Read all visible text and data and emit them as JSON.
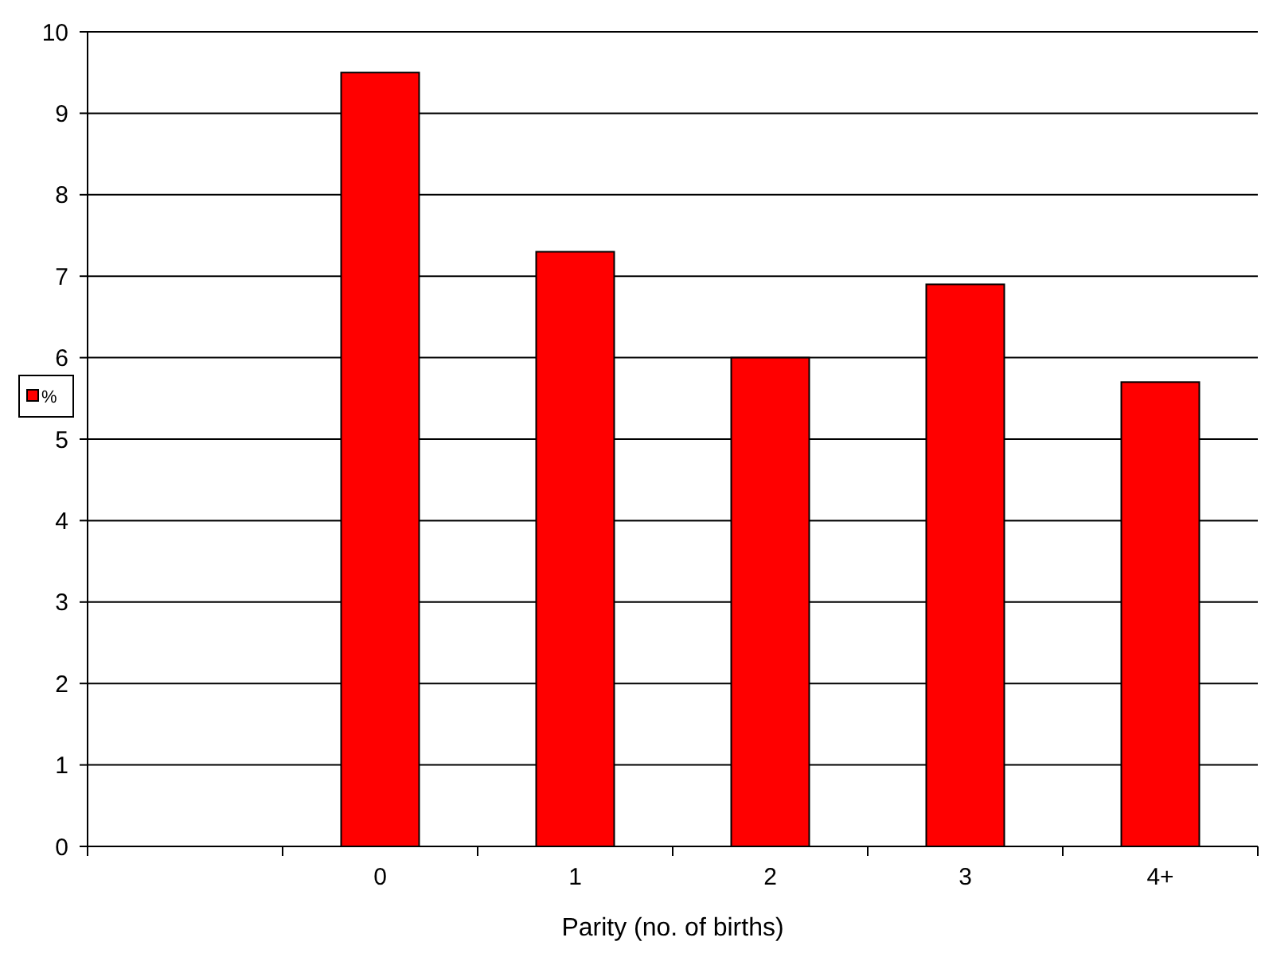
{
  "chart_data": {
    "type": "bar",
    "xlabel": "Parity (no. of births)",
    "categories": [
      null,
      "0",
      "1",
      "2",
      "3",
      "4+"
    ],
    "series": [
      {
        "name": "%",
        "color": "#ff0000",
        "values": [
          null,
          9.5,
          7.3,
          6.0,
          6.9,
          5.7
        ]
      }
    ],
    "ylim": [
      0,
      10
    ],
    "yticks": [
      0,
      1,
      2,
      3,
      4,
      5,
      6,
      7,
      8,
      9,
      10
    ],
    "grid": "y",
    "legend": "left"
  }
}
